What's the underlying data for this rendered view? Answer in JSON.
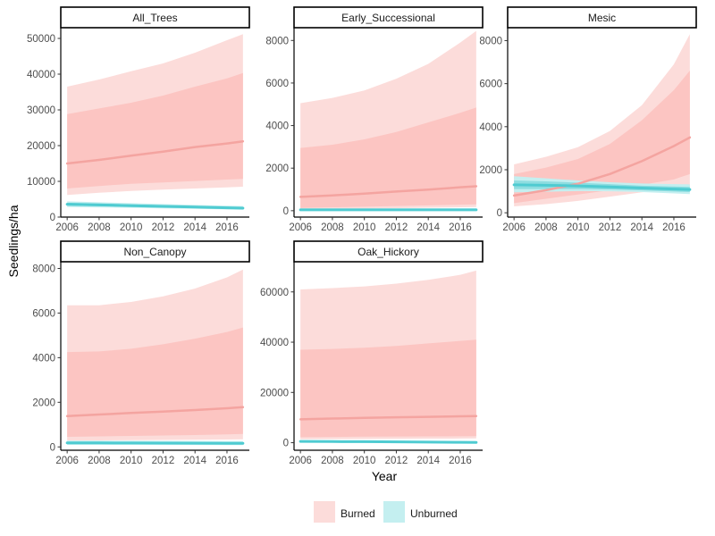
{
  "chart_data": {
    "type": "area",
    "xlabel": "Year",
    "ylabel": "Seedlings/ha",
    "x_ticks": [
      2006,
      2008,
      2010,
      2012,
      2014,
      2016
    ],
    "colors": {
      "Burned": "#F8766D",
      "Unburned": "#00BFC4"
    },
    "legend": {
      "position": "bottom",
      "entries": [
        "Burned",
        "Unburned"
      ]
    },
    "grid": false,
    "panels": [
      {
        "name": "All_Trees",
        "xlim": [
          2005.6,
          2017.4
        ],
        "ylim": [
          0,
          53000
        ],
        "y_ticks": [
          0,
          10000,
          20000,
          30000,
          40000,
          50000
        ],
        "series": [
          {
            "name": "Burned",
            "x": [
              2006,
              2008,
              2010,
              2012,
              2014,
              2016,
              2017
            ],
            "mean": [
              15000,
              16000,
              17200,
              18300,
              19600,
              20600,
              21200
            ],
            "inner_low": [
              8000,
              8700,
              9300,
              9700,
              10100,
              10500,
              10700
            ],
            "inner_high": [
              28800,
              30400,
              32000,
              34000,
              36500,
              38800,
              40300
            ],
            "outer_low": [
              6200,
              6800,
              7300,
              7700,
              8000,
              8300,
              8500
            ],
            "outer_high": [
              36500,
              38500,
              40800,
              43000,
              46000,
              49500,
              51200
            ]
          },
          {
            "name": "Unburned",
            "x": [
              2006,
              2008,
              2010,
              2012,
              2014,
              2016,
              2017
            ],
            "mean": [
              3600,
              3400,
              3200,
              3000,
              2800,
              2600,
              2500
            ],
            "inner_low": [
              3200,
              3050,
              2900,
              2750,
              2550,
              2400,
              2300
            ],
            "inner_high": [
              4000,
              3800,
              3550,
              3300,
              3100,
              2900,
              2800
            ],
            "outer_low": [
              2800,
              2700,
              2600,
              2450,
              2300,
              2150,
              2050
            ],
            "outer_high": [
              4400,
              4150,
              3900,
              3650,
              3400,
              3200,
              3100
            ]
          }
        ]
      },
      {
        "name": "Early_Successional",
        "xlim": [
          2005.6,
          2017.4
        ],
        "ylim": [
          -300,
          8600
        ],
        "y_ticks": [
          0,
          2000,
          4000,
          6000,
          8000
        ],
        "series": [
          {
            "name": "Burned",
            "x": [
              2006,
              2008,
              2010,
              2012,
              2014,
              2016,
              2017
            ],
            "mean": [
              650,
              720,
              800,
              900,
              990,
              1100,
              1150
            ],
            "inner_low": [
              130,
              160,
              190,
              220,
              250,
              280,
              300
            ],
            "inner_high": [
              2950,
              3100,
              3350,
              3700,
              4150,
              4600,
              4850
            ],
            "outer_low": [
              60,
              80,
              100,
              120,
              140,
              160,
              170
            ],
            "outer_high": [
              5050,
              5300,
              5650,
              6200,
              6900,
              7900,
              8450
            ]
          },
          {
            "name": "Unburned",
            "x": [
              2006,
              2008,
              2010,
              2012,
              2014,
              2016,
              2017
            ],
            "mean": [
              40,
              40,
              40,
              40,
              40,
              40,
              40
            ],
            "inner_low": [
              15,
              15,
              15,
              15,
              15,
              15,
              15
            ],
            "inner_high": [
              70,
              70,
              70,
              70,
              70,
              70,
              70
            ],
            "outer_low": [
              0,
              0,
              0,
              0,
              0,
              0,
              0
            ],
            "outer_high": [
              110,
              110,
              110,
              110,
              110,
              110,
              110
            ]
          }
        ]
      },
      {
        "name": "Mesic",
        "xlim": [
          2005.6,
          2017.4
        ],
        "ylim": [
          -200,
          8600
        ],
        "y_ticks": [
          0,
          2000,
          4000,
          6000,
          8000
        ],
        "series": [
          {
            "name": "Burned",
            "x": [
              2006,
              2008,
              2010,
              2012,
              2014,
              2016,
              2017
            ],
            "mean": [
              800,
              1050,
              1350,
              1800,
              2400,
              3100,
              3500
            ],
            "inner_low": [
              450,
              650,
              850,
              1050,
              1300,
              1550,
              1800
            ],
            "inner_high": [
              1800,
              2100,
              2500,
              3200,
              4300,
              5700,
              6600
            ],
            "outer_low": [
              300,
              400,
              550,
              750,
              950,
              1100,
              1200
            ],
            "outer_high": [
              2250,
              2600,
              3050,
              3800,
              5000,
              6900,
              8300
            ]
          },
          {
            "name": "Unburned",
            "x": [
              2006,
              2008,
              2010,
              2012,
              2014,
              2016,
              2017
            ],
            "mean": [
              1300,
              1280,
              1250,
              1200,
              1150,
              1100,
              1080
            ],
            "inner_low": [
              1100,
              1100,
              1100,
              1080,
              1040,
              990,
              960
            ],
            "inner_high": [
              1500,
              1460,
              1400,
              1330,
              1260,
              1220,
              1200
            ],
            "outer_low": [
              950,
              980,
              1010,
              1000,
              960,
              900,
              870
            ],
            "outer_high": [
              1700,
              1600,
              1500,
              1420,
              1360,
              1330,
              1320
            ]
          }
        ]
      },
      {
        "name": "Non_Canopy",
        "xlim": [
          2005.6,
          2017.4
        ],
        "ylim": [
          -150,
          8300
        ],
        "y_ticks": [
          0,
          2000,
          4000,
          6000,
          8000
        ],
        "series": [
          {
            "name": "Burned",
            "x": [
              2006,
              2008,
              2010,
              2012,
              2014,
              2016,
              2017
            ],
            "mean": [
              1380,
              1450,
              1520,
              1580,
              1650,
              1730,
              1780
            ],
            "inner_low": [
              450,
              470,
              490,
              510,
              530,
              560,
              580
            ],
            "inner_high": [
              4250,
              4280,
              4400,
              4600,
              4850,
              5150,
              5350
            ],
            "outer_low": [
              280,
              290,
              300,
              310,
              320,
              330,
              340
            ],
            "outer_high": [
              6350,
              6350,
              6500,
              6750,
              7100,
              7600,
              7950
            ]
          },
          {
            "name": "Unburned",
            "x": [
              2006,
              2008,
              2010,
              2012,
              2014,
              2016,
              2017
            ],
            "mean": [
              180,
              180,
              175,
              170,
              165,
              160,
              160
            ],
            "inner_low": [
              130,
              130,
              128,
              125,
              122,
              120,
              120
            ],
            "inner_high": [
              230,
              230,
              225,
              220,
              215,
              210,
              210
            ],
            "outer_low": [
              90,
              90,
              88,
              86,
              84,
              82,
              80
            ],
            "outer_high": [
              280,
              280,
              275,
              270,
              265,
              260,
              260
            ]
          }
        ]
      },
      {
        "name": "Oak_Hickory",
        "xlim": [
          2005.6,
          2017.4
        ],
        "ylim": [
          -3000,
          72000
        ],
        "y_ticks": [
          0,
          20000,
          40000,
          60000
        ],
        "series": [
          {
            "name": "Burned",
            "x": [
              2006,
              2008,
              2010,
              2012,
              2014,
              2016,
              2017
            ],
            "mean": [
              9300,
              9600,
              9900,
              10100,
              10300,
              10500,
              10600
            ],
            "inner_low": [
              2200,
              2300,
              2400,
              2450,
              2500,
              2550,
              2600
            ],
            "inner_high": [
              37000,
              37300,
              37800,
              38500,
              39500,
              40500,
              41000
            ],
            "outer_low": [
              1400,
              1450,
              1500,
              1550,
              1600,
              1650,
              1700
            ],
            "outer_high": [
              61000,
              61500,
              62200,
              63300,
              64800,
              66800,
              68500
            ]
          },
          {
            "name": "Unburned",
            "x": [
              2006,
              2008,
              2010,
              2012,
              2014,
              2016,
              2017
            ],
            "mean": [
              500,
              450,
              400,
              330,
              250,
              150,
              100
            ],
            "inner_low": [
              250,
              200,
              150,
              80,
              0,
              -100,
              -150
            ],
            "inner_high": [
              750,
              700,
              650,
              580,
              500,
              400,
              350
            ],
            "outer_low": [
              50,
              0,
              -50,
              -120,
              -200,
              -300,
              -350
            ],
            "outer_high": [
              950,
              900,
              850,
              780,
              700,
              600,
              550
            ]
          }
        ]
      }
    ]
  }
}
